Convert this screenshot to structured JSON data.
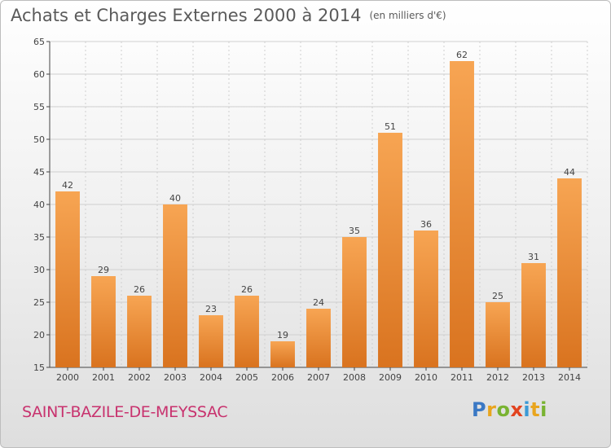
{
  "header": {
    "title": "Achats et Charges Externes 2000 à 2014",
    "unit_note": "(en milliers d'€)"
  },
  "footer": {
    "commune": "SAINT-BAZILE-DE-MEYSSAC",
    "logo_letters": [
      "P",
      "r",
      "o",
      "x",
      "i",
      "t",
      "i"
    ]
  },
  "colors": {
    "bar_light": "#f7a553",
    "bar_dark": "#d9731f",
    "grid": "#cfcfcf",
    "commune": "#c8326e",
    "logo": [
      "#3a78c4",
      "#e9a51e",
      "#79b331",
      "#e2431f",
      "#3a9ad6",
      "#e9a51e",
      "#79b331"
    ]
  },
  "chart_data": {
    "type": "bar",
    "title": "Achats et Charges Externes 2000 à 2014",
    "subtitle": "(en milliers d'€)",
    "categories": [
      "2000",
      "2001",
      "2002",
      "2003",
      "2004",
      "2005",
      "2006",
      "2007",
      "2008",
      "2009",
      "2010",
      "2011",
      "2012",
      "2013",
      "2014"
    ],
    "values": [
      42,
      29,
      26,
      40,
      23,
      26,
      19,
      24,
      35,
      51,
      36,
      62,
      25,
      31,
      44
    ],
    "ylim": [
      15,
      65
    ],
    "yticks": [
      15,
      20,
      25,
      30,
      35,
      40,
      45,
      50,
      55,
      60,
      65
    ],
    "grid": true,
    "data_labels": true
  }
}
